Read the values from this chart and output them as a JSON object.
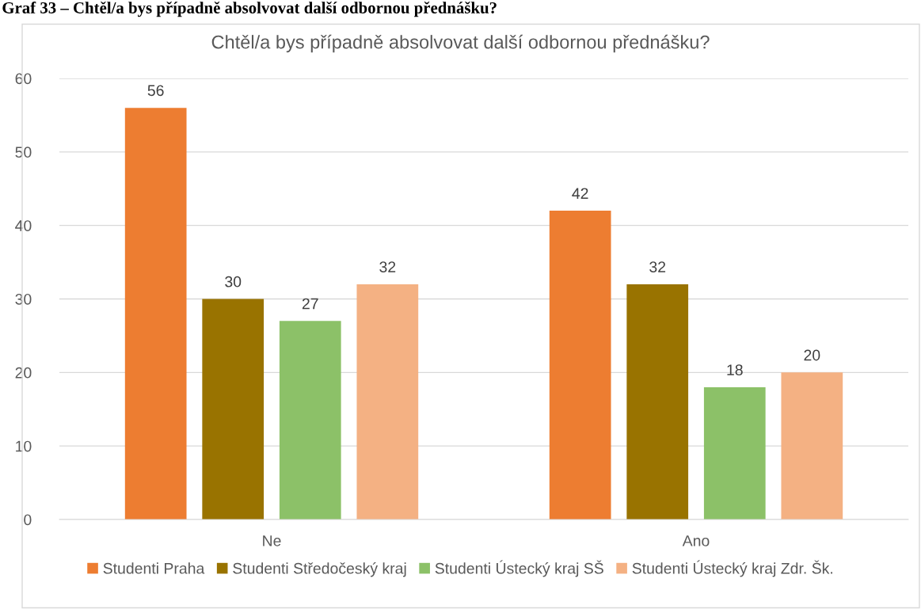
{
  "chart_data": {
    "type": "bar",
    "title": "Chtěl/a bys případně absolvovat další odbornou přednášku?",
    "annotations": [
      "Graf 33 – Chtěl/a bys případně absolvovat další odbornou přednášku?"
    ],
    "categories": [
      "Ne",
      "Ano"
    ],
    "series": [
      {
        "name": "Studenti Praha",
        "color": "#ed7d31",
        "values": [
          56,
          42
        ]
      },
      {
        "name": "Studenti Středočeský kraj",
        "color": "#997300",
        "values": [
          30,
          32
        ]
      },
      {
        "name": "Studenti Ústecký kraj SŠ",
        "color": "#8cc168",
        "values": [
          27,
          18
        ]
      },
      {
        "name": "Studenti Ústecký kraj Zdr. Šk.",
        "color": "#f4b183",
        "values": [
          32,
          20
        ]
      }
    ],
    "ylim": [
      0,
      60
    ],
    "yticks": [
      0,
      10,
      20,
      30,
      40,
      50,
      60
    ],
    "grid": "y",
    "legend": "bottom",
    "data_labels": true
  }
}
